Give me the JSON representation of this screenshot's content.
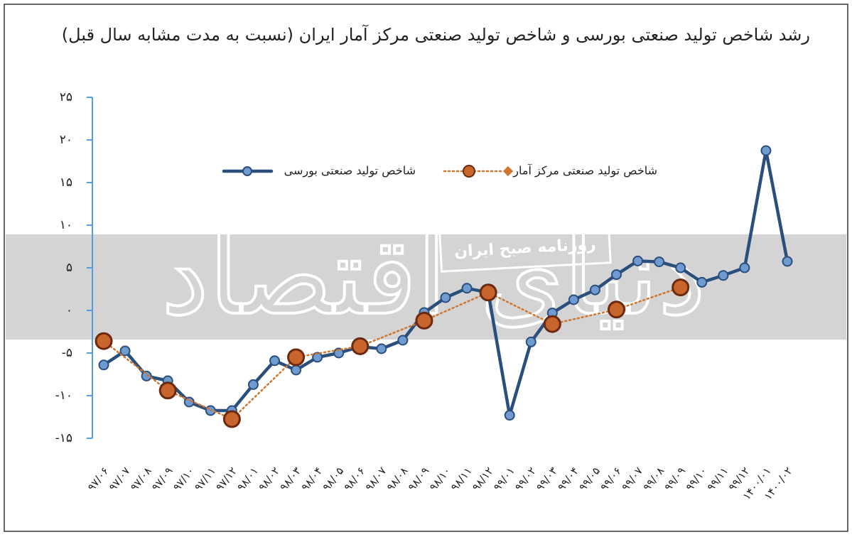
{
  "chart_data": {
    "type": "line",
    "title": "رشد شاخص تولید صنعتی بورسی  و شاخص تولید صنعتی مرکز آمار ایران (نسبت به مدت مشابه سال قبل)",
    "watermark": {
      "logo": "دنیای اقتصاد",
      "banner": "روزنامه صبح ایران"
    },
    "categories": [
      "۹۷/۰۶",
      "۹۷/۰۷",
      "۹۷/۰۸",
      "۹۷/۰۹",
      "۹۷/۱۰",
      "۹۷/۱۱",
      "۹۷/۱۲",
      "۹۸/۰۱",
      "۹۸/۰۲",
      "۹۸/۰۳",
      "۹۸/۰۴",
      "۹۸/۰۵",
      "۹۸/۰۶",
      "۹۸/۰۷",
      "۹۸/۰۸",
      "۹۸/۰۹",
      "۹۸/۱۰",
      "۹۸/۱۱",
      "۹۸/۱۲",
      "۹۹/۰۱",
      "۹۹/۰۲",
      "۹۹/۰۳",
      "۹۹/۰۴",
      "۹۹/۰۵",
      "۹۹/۰۶",
      "۹۹/۰۷",
      "۹۹/۰۸",
      "۹۹/۰۹",
      "۹۹/۱۰",
      "۹۹/۱۱",
      "۹۹/۱۲",
      "۱۴۰۰/۰۱",
      "۱۴۰۰/۰۲"
    ],
    "series": [
      {
        "name": "شاخص تولید صنعتی بورسی",
        "color": "#2b4f7c",
        "marker_color": "#6f9bd0",
        "style": "solid",
        "values": [
          -6.4,
          -4.75,
          -7.7,
          -8.25,
          -10.75,
          -11.75,
          -11.75,
          -8.7,
          -5.9,
          -7,
          -5.5,
          -5,
          -4.25,
          -4.5,
          -3.5,
          -0.25,
          1.5,
          2.6,
          2.1,
          -12.3,
          -3.7,
          -0.3,
          1.25,
          2.4,
          4.2,
          5.8,
          5.7,
          5,
          3.3,
          4.1,
          5,
          18.75,
          5.75
        ]
      },
      {
        "name": "شاخص تولید صنعتی مرکز آمار",
        "color": "#d0762f",
        "marker_color": "#c8652c",
        "style": "dotted",
        "span_gaps": true,
        "values": [
          -3.6,
          null,
          null,
          -9.4,
          null,
          null,
          -12.75,
          null,
          null,
          -5.5,
          null,
          null,
          -4.2,
          null,
          null,
          -1.2,
          null,
          null,
          2.1,
          null,
          null,
          -1.6,
          null,
          null,
          0.1,
          null,
          null,
          2.7,
          null,
          null,
          null,
          null,
          null
        ]
      }
    ],
    "ylim": [
      -15,
      25
    ],
    "yticks": [
      {
        "value": 25,
        "label": "۲۵"
      },
      {
        "value": 20,
        "label": "۲۰"
      },
      {
        "value": 15,
        "label": "۱۵"
      },
      {
        "value": 10,
        "label": "۱۰"
      },
      {
        "value": 5,
        "label": "۵"
      },
      {
        "value": 0,
        "label": "۰"
      },
      {
        "value": -5,
        "label": "-۵"
      },
      {
        "value": -10,
        "label": "-۱۰"
      },
      {
        "value": -15,
        "label": "-۱۵"
      }
    ],
    "grid": false,
    "legend": "top"
  }
}
